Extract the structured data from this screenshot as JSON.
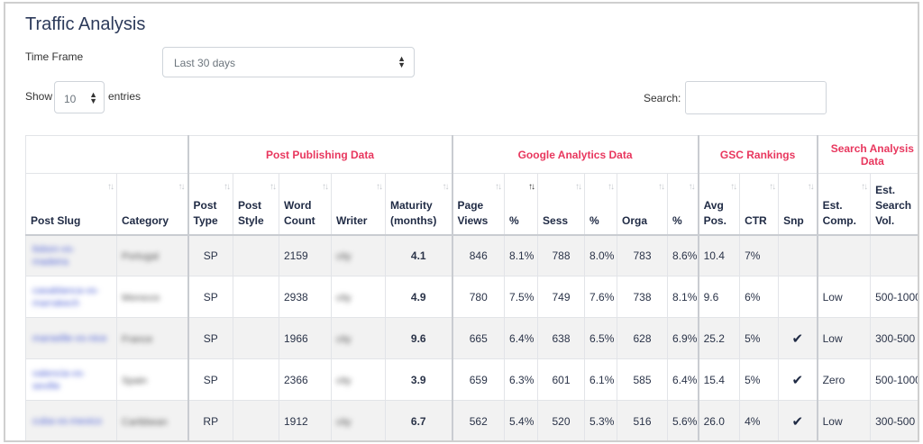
{
  "page": {
    "title": "Traffic Analysis",
    "time_frame_label": "Time Frame",
    "time_frame_value": "Last 30 days",
    "show_label": "Show",
    "show_value": "10",
    "entries_label": "entries",
    "search_label": "Search:",
    "search_value": ""
  },
  "table": {
    "groups": {
      "post_publishing": "Post Publishing Data",
      "google_analytics": "Google Analytics Data",
      "gsc_rankings": "GSC Rankings",
      "search_analysis": "Search Analysis Data"
    },
    "columns": {
      "post_slug": "Post Slug",
      "category": "Category",
      "post_type": "Post Type",
      "post_style": "Post Style",
      "word_count": "Word Count",
      "writer": "Writer",
      "maturity": "Maturity (months)",
      "page_views": "Page Views",
      "page_views_pct": "%",
      "sess": "Sess",
      "sess_pct": "%",
      "orga": "Orga",
      "orga_pct": "%",
      "avg_pos": "Avg Pos.",
      "ctr": "CTR",
      "snp": "Snp",
      "est_comp": "Est. Comp.",
      "est_search_vol": "Est. Search Vol."
    },
    "rows": [
      {
        "slug": "lisbon-vs-madeira",
        "category": "Portugal",
        "post_type": "SP",
        "post_style": "",
        "word_count": "2159",
        "writer": "city",
        "maturity": "4.1",
        "page_views": "846",
        "pv_pct": "8.1%",
        "sess": "788",
        "sess_pct": "8.0%",
        "orga": "783",
        "orga_pct": "8.6%",
        "avg_pos": "10.4",
        "ctr": "7%",
        "snp": "",
        "est_comp": "",
        "est_search_vol": ""
      },
      {
        "slug": "casablanca-vs-marrakech",
        "category": "Morocco",
        "post_type": "SP",
        "post_style": "",
        "word_count": "2938",
        "writer": "city",
        "maturity": "4.9",
        "page_views": "780",
        "pv_pct": "7.5%",
        "sess": "749",
        "sess_pct": "7.6%",
        "orga": "738",
        "orga_pct": "8.1%",
        "avg_pos": "9.6",
        "ctr": "6%",
        "snp": "",
        "est_comp": "Low",
        "est_search_vol": "500-1000"
      },
      {
        "slug": "marseille-vs-nice",
        "category": "France",
        "post_type": "SP",
        "post_style": "",
        "word_count": "1966",
        "writer": "city",
        "maturity": "9.6",
        "page_views": "665",
        "pv_pct": "6.4%",
        "sess": "638",
        "sess_pct": "6.5%",
        "orga": "628",
        "orga_pct": "6.9%",
        "avg_pos": "25.2",
        "ctr": "5%",
        "snp": "✔",
        "est_comp": "Low",
        "est_search_vol": "300-500"
      },
      {
        "slug": "valencia-vs-seville",
        "category": "Spain",
        "post_type": "SP",
        "post_style": "",
        "word_count": "2366",
        "writer": "city",
        "maturity": "3.9",
        "page_views": "659",
        "pv_pct": "6.3%",
        "sess": "601",
        "sess_pct": "6.1%",
        "orga": "585",
        "orga_pct": "6.4%",
        "avg_pos": "15.4",
        "ctr": "5%",
        "snp": "✔",
        "est_comp": "Zero",
        "est_search_vol": "500-1000"
      },
      {
        "slug": "cuba-vs-mexico",
        "category": "Caribbean",
        "post_type": "RP",
        "post_style": "",
        "word_count": "1912",
        "writer": "city",
        "maturity": "6.7",
        "page_views": "562",
        "pv_pct": "5.4%",
        "sess": "520",
        "sess_pct": "5.3%",
        "orga": "516",
        "orga_pct": "5.6%",
        "avg_pos": "26.0",
        "ctr": "4%",
        "snp": "✔",
        "est_comp": "Low",
        "est_search_vol": "300-500"
      }
    ]
  },
  "icons": {
    "sort": "sort-arrows-icon",
    "sort_active": "sort-desc-icon",
    "select": "select-caret-icon",
    "check": "check-icon"
  },
  "colors": {
    "group_header": "#e8375e",
    "link": "#5567d6",
    "stripe": "#f2f2f2"
  }
}
